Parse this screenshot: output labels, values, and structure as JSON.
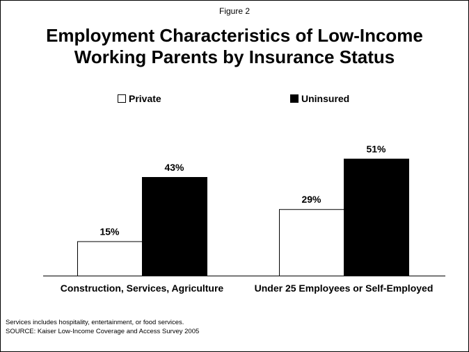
{
  "figure_label": "Figure 2",
  "title_lines": [
    "Employment Characteristics of Low-Income",
    "Working Parents by Insurance Status"
  ],
  "legend": [
    {
      "name": "Private",
      "color": "#ffffff"
    },
    {
      "name": "Uninsured",
      "color": "#000000"
    }
  ],
  "footnotes": [
    "Services includes hospitality, entertainment, or food services.",
    "SOURCE: Kaiser Low-Income Coverage and Access Survey 2005"
  ],
  "chart_data": {
    "type": "bar",
    "title": "Employment Characteristics of Low-Income Working Parents by Insurance Status",
    "categories": [
      "Construction, Services, Agriculture",
      "Under 25 Employees or Self-Employed"
    ],
    "series": [
      {
        "name": "Private",
        "values": [
          15,
          29
        ],
        "labels": [
          "15%",
          "29%"
        ],
        "color": "#ffffff"
      },
      {
        "name": "Uninsured",
        "values": [
          43,
          51
        ],
        "labels": [
          "43%",
          "51%"
        ],
        "color": "#000000"
      }
    ],
    "ylim": [
      0,
      60
    ],
    "grid": false,
    "legend_position": "top"
  }
}
